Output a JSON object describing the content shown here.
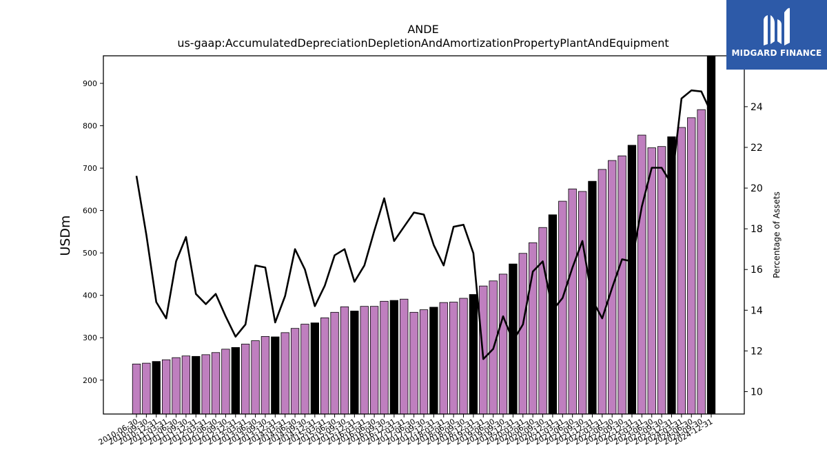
{
  "chart_data": {
    "type": "bar",
    "title": "ANDE",
    "subtitle": "us-gaap:AccumulatedDepreciationDepletionAndAmortizationPropertyPlantAndEquipment",
    "ylabel": "USDm",
    "y2label": "Percentage of Assets",
    "ylim": [
      120,
      965
    ],
    "y2lim": [
      8.9,
      26.5
    ],
    "yticks": [
      200,
      300,
      400,
      500,
      600,
      700,
      800,
      900
    ],
    "y2ticks": [
      10,
      12,
      14,
      16,
      18,
      20,
      22,
      24
    ],
    "categories": [
      "2010-06-30",
      "2010-09-30",
      "2010-12-31",
      "2011-03-31",
      "2011-06-30",
      "2011-09-30",
      "2011-12-31",
      "2012-03-31",
      "2012-06-30",
      "2012-09-30",
      "2012-12-31",
      "2013-03-31",
      "2013-06-30",
      "2013-09-30",
      "2013-12-31",
      "2014-03-31",
      "2014-06-30",
      "2014-09-30",
      "2014-12-31",
      "2015-03-31",
      "2015-06-30",
      "2015-09-30",
      "2015-12-31",
      "2016-03-31",
      "2016-06-30",
      "2016-09-30",
      "2016-12-31",
      "2017-03-31",
      "2017-06-30",
      "2017-09-30",
      "2017-12-31",
      "2018-03-31",
      "2018-06-30",
      "2018-09-30",
      "2018-12-31",
      "2019-03-31",
      "2019-06-30",
      "2019-09-30",
      "2019-12-31",
      "2020-03-31",
      "2020-06-30",
      "2020-09-30",
      "2020-12-31",
      "2021-03-31",
      "2021-06-30",
      "2021-09-30",
      "2021-12-31",
      "2022-03-31",
      "2022-06-30",
      "2022-09-30",
      "2022-12-31",
      "2023-03-31",
      "2023-06-30",
      "2023-09-30",
      "2023-12-31",
      "2024-03-31",
      "2024-06-30",
      "2024-09-30",
      "2024-12-31"
    ],
    "series": [
      {
        "kind": "bar",
        "values": [
          238,
          240,
          244,
          248,
          253,
          257,
          256,
          260,
          265,
          273,
          277,
          285,
          293,
          303,
          302,
          312,
          322,
          332,
          335,
          347,
          360,
          373,
          363,
          374,
          374,
          386,
          388,
          391,
          360,
          366,
          372,
          383,
          384,
          393,
          402,
          422,
          434,
          450,
          474,
          499,
          524,
          560,
          590,
          622,
          651,
          645,
          669,
          697,
          718,
          729,
          754,
          778,
          748,
          751,
          774,
          796,
          819,
          838,
          965
        ],
        "colors": [
          "#bf7fbf",
          "#bf7fbf",
          "#000000",
          "#bf7fbf",
          "#bf7fbf",
          "#bf7fbf",
          "#000000",
          "#bf7fbf",
          "#bf7fbf",
          "#bf7fbf",
          "#000000",
          "#bf7fbf",
          "#bf7fbf",
          "#bf7fbf",
          "#000000",
          "#bf7fbf",
          "#bf7fbf",
          "#bf7fbf",
          "#000000",
          "#bf7fbf",
          "#bf7fbf",
          "#bf7fbf",
          "#000000",
          "#bf7fbf",
          "#bf7fbf",
          "#bf7fbf",
          "#000000",
          "#bf7fbf",
          "#bf7fbf",
          "#bf7fbf",
          "#000000",
          "#bf7fbf",
          "#bf7fbf",
          "#bf7fbf",
          "#000000",
          "#bf7fbf",
          "#bf7fbf",
          "#bf7fbf",
          "#000000",
          "#bf7fbf",
          "#bf7fbf",
          "#bf7fbf",
          "#000000",
          "#bf7fbf",
          "#bf7fbf",
          "#bf7fbf",
          "#000000",
          "#bf7fbf",
          "#bf7fbf",
          "#bf7fbf",
          "#000000",
          "#bf7fbf",
          "#bf7fbf",
          "#bf7fbf",
          "#000000",
          "#bf7fbf",
          "#bf7fbf",
          "#bf7fbf",
          "#000000"
        ]
      },
      {
        "kind": "line",
        "axis": "right",
        "values": [
          20.6,
          17.7,
          14.4,
          13.6,
          16.4,
          17.6,
          14.8,
          14.3,
          14.8,
          13.7,
          12.7,
          13.3,
          16.2,
          16.1,
          13.4,
          14.7,
          17.0,
          16.0,
          14.2,
          15.2,
          16.7,
          17.0,
          15.4,
          16.2,
          17.9,
          19.5,
          17.4,
          18.1,
          18.8,
          18.7,
          17.2,
          16.2,
          18.1,
          18.2,
          16.8,
          11.6,
          12.1,
          13.7,
          12.5,
          13.3,
          15.9,
          16.4,
          14.0,
          14.6,
          16.1,
          17.4,
          14.5,
          13.6,
          15.1,
          16.5,
          16.4,
          19.1,
          21.0,
          21.0,
          20.2,
          24.4,
          24.8,
          24.75,
          23.7
        ]
      }
    ],
    "grid": false,
    "legend": "none"
  },
  "logo": {
    "text": "MIDGARD FINANCE",
    "bg_color": "#2d5aa8"
  }
}
